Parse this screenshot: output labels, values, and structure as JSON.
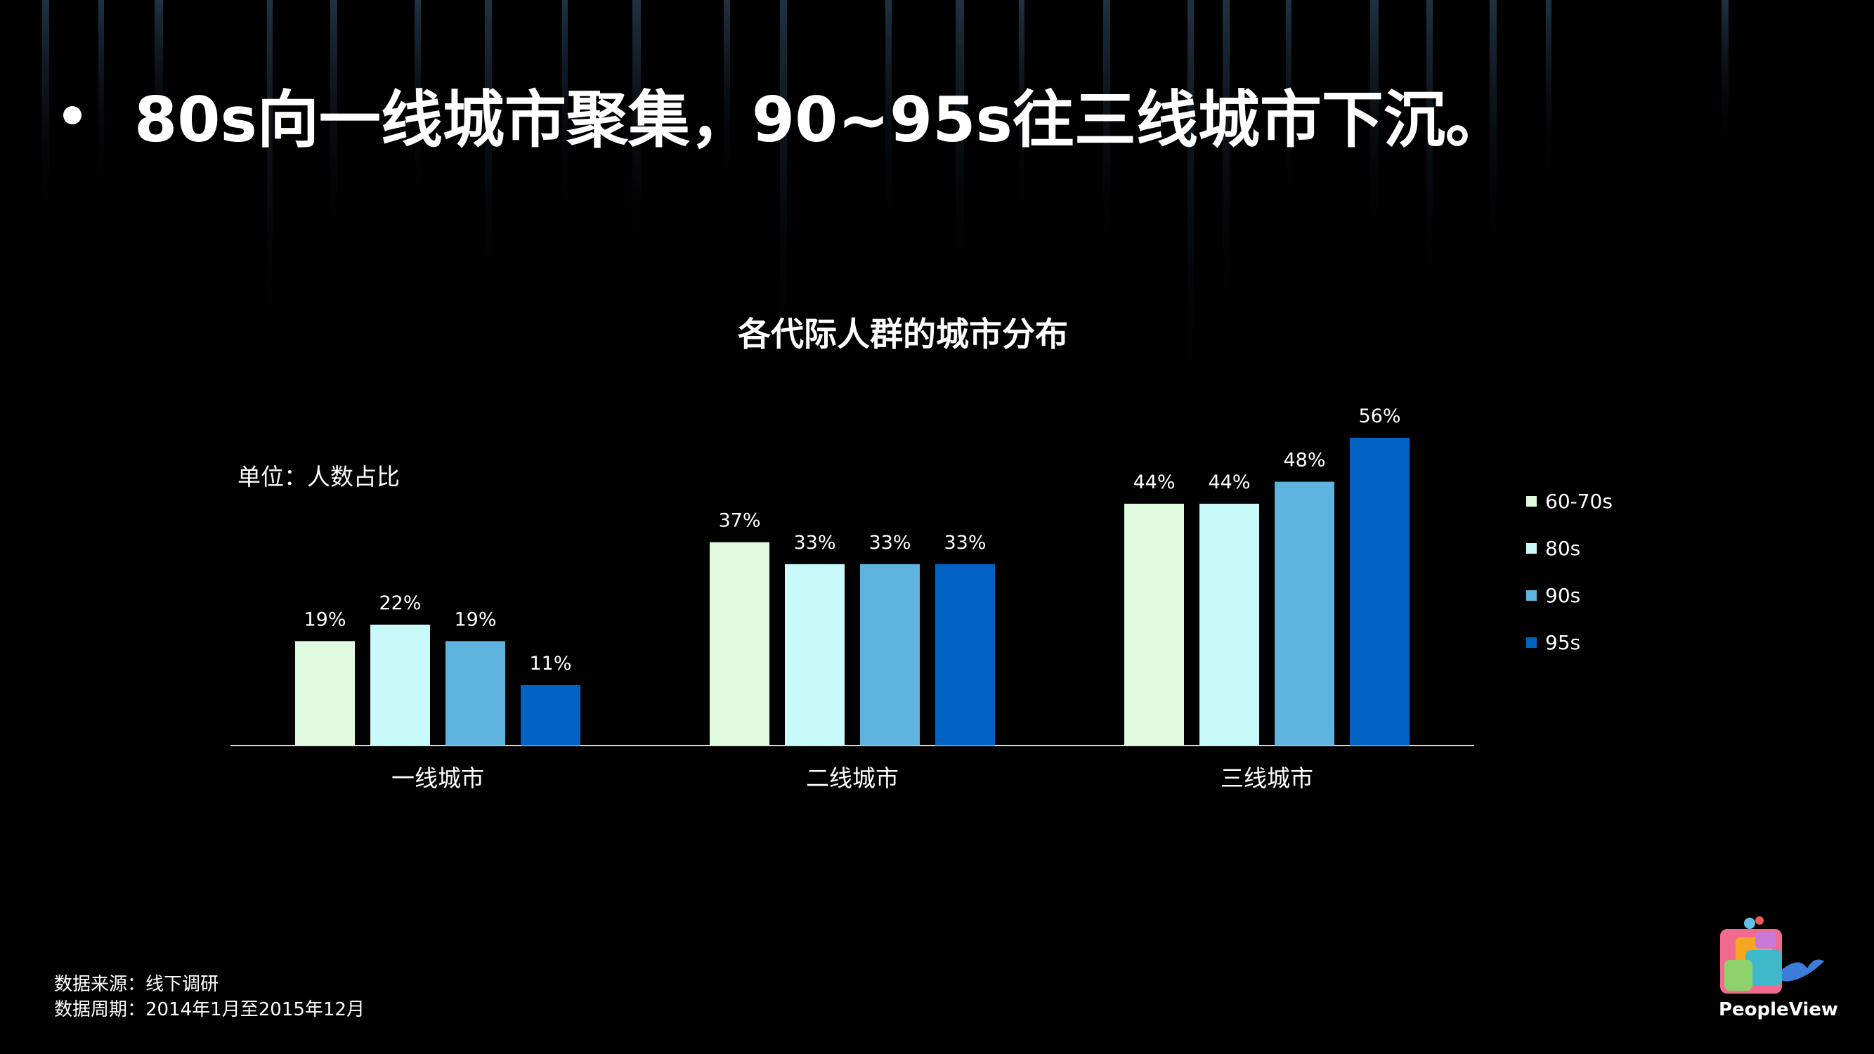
{
  "headline": "80s向一线城市聚集，90~95s往三线城市下沉。",
  "unit_label": "单位：人数占比",
  "source": {
    "line1": "数据来源：线下调研",
    "line2": "数据周期：2014年1月至2015年12月"
  },
  "brand": {
    "name": "PeopleView"
  },
  "colors": {
    "background": "#000000",
    "s60_70": "#E0FBE0",
    "s80": "#C8FAFA",
    "s90": "#5EB4DE",
    "s95": "#0063C4",
    "axis": "#D9D9D9"
  },
  "chart_data": {
    "type": "bar",
    "title": "各代际人群的城市分布",
    "categories": [
      "一线城市",
      "二线城市",
      "三线城市"
    ],
    "series": [
      {
        "name": "60-70s",
        "values": [
          19,
          37,
          44
        ],
        "color": "#E0FBE0"
      },
      {
        "name": "80s",
        "values": [
          22,
          33,
          44
        ],
        "color": "#C8FAFA"
      },
      {
        "name": "90s",
        "values": [
          19,
          33,
          48
        ],
        "color": "#5EB4DE"
      },
      {
        "name": "95s",
        "values": [
          11,
          33,
          56
        ],
        "color": "#0063C4"
      }
    ],
    "value_suffix": "%",
    "ylim": [
      0,
      56
    ],
    "grid": false,
    "legend": "right"
  }
}
